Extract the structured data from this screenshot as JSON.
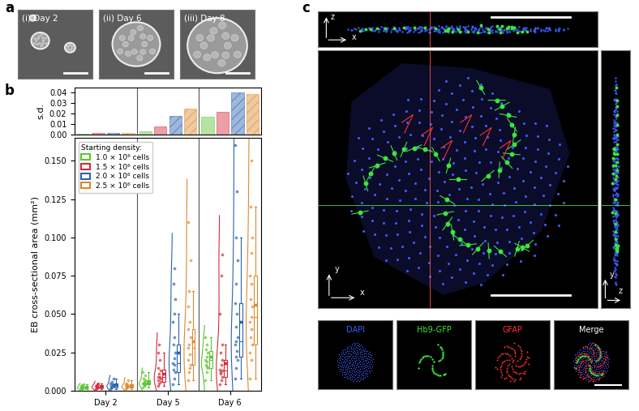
{
  "panels": {
    "a": {
      "label": "a",
      "images": [
        "(i) Day 2",
        "(ii) Day 6",
        "(iii) Day 8"
      ]
    },
    "b": {
      "label": "b"
    },
    "c": {
      "label": "c",
      "orthogonal_axes": {
        "xz": [
          "z",
          "x"
        ],
        "xy": [
          "y",
          "x"
        ],
        "yz": [
          "y",
          "z"
        ]
      },
      "channels": [
        {
          "name": "DAPI",
          "color": "#3d5cff"
        },
        {
          "name": "Hb9-GFP",
          "color": "#39e639"
        },
        {
          "name": "GFAP",
          "color": "#ff3030"
        },
        {
          "name": "Merge",
          "color": "#ffffff"
        }
      ]
    }
  },
  "chart_data": [
    {
      "type": "bar",
      "ylabel": "s.d.",
      "tick_labels": "y",
      "ylim": [
        0,
        0.045
      ],
      "yticks": [
        {
          "value": 0,
          "label": "0.00"
        },
        {
          "value": 0.01,
          "label": "0.01"
        },
        {
          "value": 0.02,
          "label": "0.02"
        },
        {
          "value": 0.03,
          "label": "0.03"
        },
        {
          "value": 0.04,
          "label": "0.04"
        }
      ],
      "series": [
        {
          "color": "#5cc531",
          "values": [
            0.0008,
            0.003,
            0.017
          ]
        },
        {
          "color": "#d42a3a",
          "values": [
            0.0012,
            0.008,
            0.022
          ]
        },
        {
          "color": "#2a63ad",
          "values": [
            0.0015,
            0.018,
            0.04
          ]
        },
        {
          "color": "#dd8a2e",
          "values": [
            0.0012,
            0.025,
            0.039
          ]
        }
      ]
    },
    {
      "type": "box",
      "ylabel": "EB cross-sectional area (mm²)",
      "categories": [
        "Day 2",
        "Day 5",
        "Day 6"
      ],
      "ylim": [
        0,
        0.165
      ],
      "yticks": [
        {
          "value": 0,
          "label": "0.000"
        },
        {
          "value": 0.025,
          "label": "0.025"
        },
        {
          "value": 0.05,
          "label": "0.050"
        },
        {
          "value": 0.075,
          "label": "0.075"
        },
        {
          "value": 0.1,
          "label": "0.100"
        },
        {
          "value": 0.125,
          "label": "0.125"
        },
        {
          "value": 0.15,
          "label": "0.150"
        }
      ],
      "legend": "upper left",
      "legend_title": "Starting density:",
      "series": [
        {
          "name": "1.0 × 10⁶ cells",
          "color": "#5cc531",
          "boxes": [
            {
              "median": 0.002,
              "q1": 0.0015,
              "q3": 0.003,
              "whislo": 0.001,
              "whishi": 0.004,
              "mean": 0.0023
            },
            {
              "median": 0.005,
              "q1": 0.004,
              "q3": 0.007,
              "whislo": 0.002,
              "whishi": 0.012,
              "mean": 0.006
            },
            {
              "median": 0.02,
              "q1": 0.015,
              "q3": 0.026,
              "whislo": 0.007,
              "whishi": 0.035,
              "mean": 0.022
            }
          ],
          "points": [
            [
              0.001,
              0.0015,
              0.002,
              0.002,
              0.0025,
              0.003,
              0.0035,
              0.004,
              0.002,
              0.0015
            ],
            [
              0.002,
              0.003,
              0.004,
              0.0045,
              0.005,
              0.005,
              0.006,
              0.007,
              0.008,
              0.01,
              0.012,
              0.004
            ],
            [
              0.007,
              0.012,
              0.015,
              0.017,
              0.019,
              0.02,
              0.022,
              0.025,
              0.027,
              0.03,
              0.035,
              0.016
            ]
          ]
        },
        {
          "name": "1.5 × 10⁶ cells",
          "color": "#d42a3a",
          "boxes": [
            {
              "median": 0.0025,
              "q1": 0.002,
              "q3": 0.0035,
              "whislo": 0.001,
              "whishi": 0.005,
              "mean": 0.0028
            },
            {
              "median": 0.009,
              "q1": 0.006,
              "q3": 0.014,
              "whislo": 0.003,
              "whishi": 0.025,
              "mean": 0.011
            },
            {
              "median": 0.013,
              "q1": 0.009,
              "q3": 0.02,
              "whislo": 0.004,
              "whishi": 0.03,
              "mean": 0.018
            }
          ],
          "points": [
            [
              0.001,
              0.002,
              0.002,
              0.0025,
              0.003,
              0.003,
              0.004,
              0.005,
              0.0015,
              0.0035
            ],
            [
              0.003,
              0.005,
              0.006,
              0.007,
              0.009,
              0.009,
              0.011,
              0.013,
              0.015,
              0.02,
              0.025,
              0.03,
              0.008
            ],
            [
              0.004,
              0.007,
              0.009,
              0.011,
              0.013,
              0.014,
              0.017,
              0.02,
              0.025,
              0.03,
              0.05,
              0.075,
              0.089,
              0.012
            ]
          ]
        },
        {
          "name": "2.0 × 10⁶ cells",
          "color": "#2a63ad",
          "boxes": [
            {
              "median": 0.003,
              "q1": 0.002,
              "q3": 0.005,
              "whislo": 0.001,
              "whishi": 0.008,
              "mean": 0.0037
            },
            {
              "median": 0.018,
              "q1": 0.012,
              "q3": 0.03,
              "whislo": 0.004,
              "whishi": 0.05,
              "mean": 0.025
            },
            {
              "median": 0.032,
              "q1": 0.022,
              "q3": 0.057,
              "whislo": 0.008,
              "whishi": 0.1,
              "mean": 0.045
            }
          ],
          "points": [
            [
              0.001,
              0.002,
              0.003,
              0.003,
              0.004,
              0.005,
              0.006,
              0.008,
              0.002,
              0.0035
            ],
            [
              0.004,
              0.008,
              0.012,
              0.014,
              0.017,
              0.018,
              0.021,
              0.025,
              0.03,
              0.035,
              0.045,
              0.05,
              0.06,
              0.07,
              0.08
            ],
            [
              0.008,
              0.015,
              0.02,
              0.022,
              0.026,
              0.03,
              0.032,
              0.035,
              0.042,
              0.05,
              0.057,
              0.07,
              0.085,
              0.1,
              0.13,
              0.16
            ]
          ]
        },
        {
          "name": "2.5 × 10⁶ cells",
          "color": "#dd8a2e",
          "boxes": [
            {
              "median": 0.003,
              "q1": 0.002,
              "q3": 0.004,
              "whislo": 0.001,
              "whishi": 0.007,
              "mean": 0.0033
            },
            {
              "median": 0.028,
              "q1": 0.017,
              "q3": 0.04,
              "whislo": 0.007,
              "whishi": 0.065,
              "mean": 0.032
            },
            {
              "median": 0.048,
              "q1": 0.03,
              "q3": 0.075,
              "whislo": 0.008,
              "whishi": 0.12,
              "mean": 0.056
            }
          ],
          "points": [
            [
              0.001,
              0.002,
              0.003,
              0.003,
              0.0035,
              0.004,
              0.005,
              0.007,
              0.0025,
              0.002
            ],
            [
              0.007,
              0.012,
              0.017,
              0.02,
              0.024,
              0.028,
              0.03,
              0.035,
              0.04,
              0.045,
              0.055,
              0.065,
              0.085,
              0.11,
              0.015
            ],
            [
              0.008,
              0.02,
              0.03,
              0.035,
              0.04,
              0.045,
              0.048,
              0.055,
              0.06,
              0.07,
              0.075,
              0.09,
              0.1,
              0.12,
              0.15,
              0.025
            ]
          ]
        }
      ]
    }
  ]
}
